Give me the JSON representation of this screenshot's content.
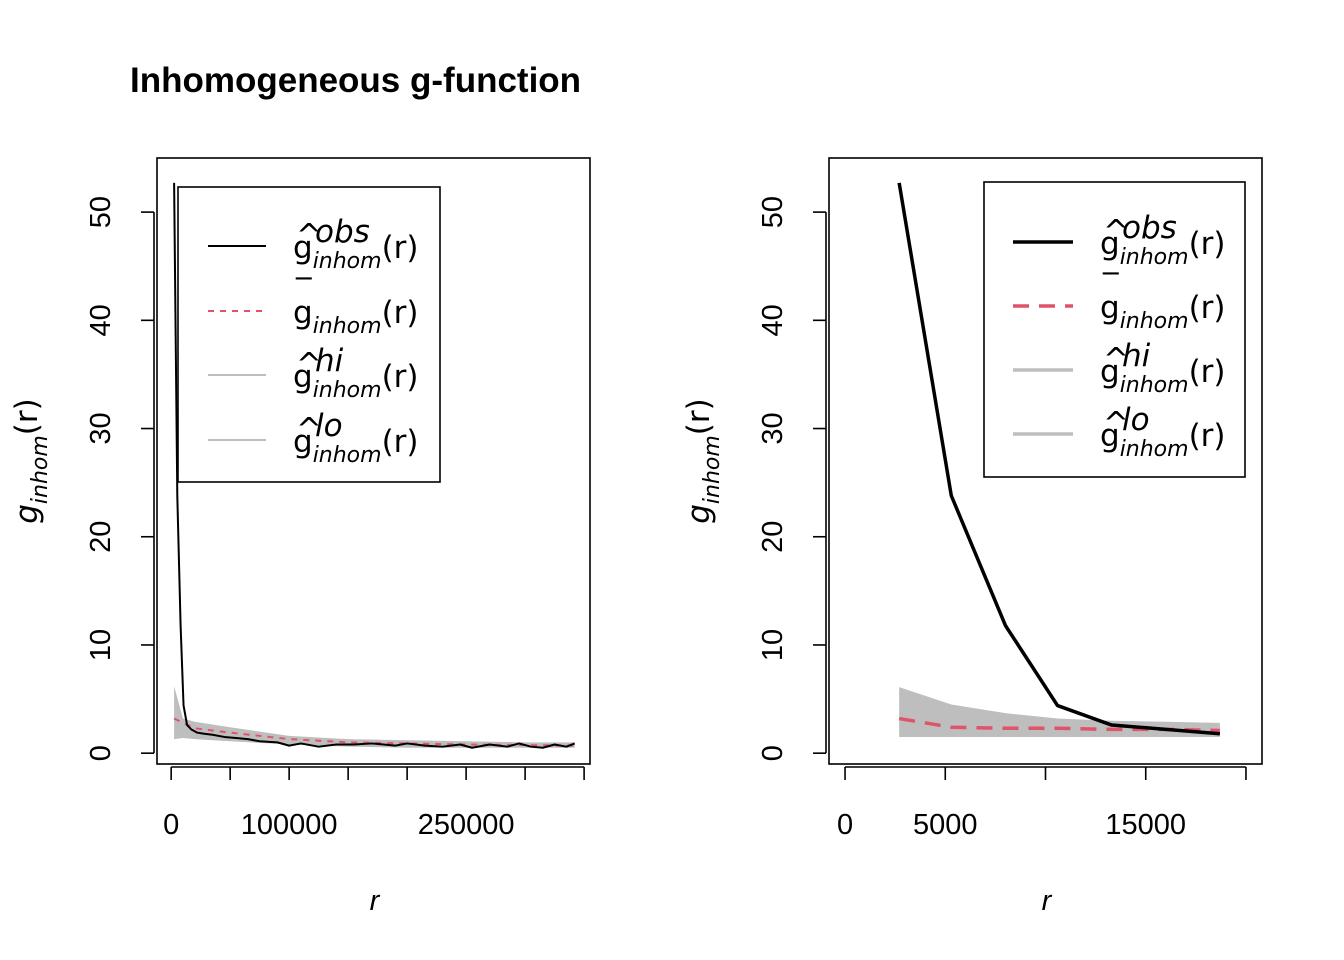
{
  "title": "Inhomogeneous g-function",
  "colors": {
    "obs": "#000000",
    "theo": "#DF536B",
    "envelope": "#BEBEBE",
    "box": "#000000"
  },
  "legend": {
    "entries": [
      {
        "key": "obs",
        "base": "g",
        "accent": "^",
        "sup": "obs",
        "sub": "inhom",
        "arg": "(r)"
      },
      {
        "key": "theo",
        "base": "g",
        "accent": "‾",
        "sup": "",
        "sub": "inhom",
        "arg": "(r)"
      },
      {
        "key": "hi",
        "base": "g",
        "accent": "^",
        "sup": "hi",
        "sub": "inhom",
        "arg": "(r)"
      },
      {
        "key": "lo",
        "base": "g",
        "accent": "^",
        "sup": "lo",
        "sub": "inhom",
        "arg": "(r)"
      }
    ]
  },
  "chart_data": [
    {
      "type": "line",
      "title": "Inhomogeneous g-function",
      "xlabel": "r",
      "ylabel_base": "g",
      "ylabel_sub": "inhom",
      "ylabel_arg": "(r)",
      "xlim": [
        -12000,
        355000
      ],
      "ylim": [
        -1,
        55
      ],
      "xticks": [
        0,
        50000,
        100000,
        150000,
        200000,
        250000,
        300000,
        350000
      ],
      "xtick_labels": [
        "0",
        "",
        "100000",
        "",
        "",
        "250000",
        "",
        ""
      ],
      "yticks": [
        0,
        10,
        20,
        30,
        40,
        50
      ],
      "ytick_labels": [
        "0",
        "10",
        "20",
        "30",
        "40",
        "50"
      ],
      "legend_position": "top-right",
      "series": [
        {
          "key": "obs",
          "x": [
            2500,
            5200,
            8000,
            10500,
            13500,
            17000,
            22000,
            28000,
            35000,
            45000,
            55000,
            65000,
            75000,
            90000,
            100000,
            110000,
            125000,
            140000,
            155000,
            170000,
            190000,
            200000,
            215000,
            230000,
            245000,
            255000,
            270000,
            285000,
            295000,
            305000,
            315000,
            325000,
            335000,
            342000
          ],
          "y": [
            52.7,
            23.8,
            11.8,
            4.4,
            2.6,
            2.2,
            1.9,
            1.8,
            1.7,
            1.5,
            1.4,
            1.3,
            1.1,
            1.0,
            0.7,
            0.9,
            0.6,
            0.8,
            0.8,
            0.9,
            0.7,
            0.9,
            0.7,
            0.6,
            0.8,
            0.5,
            0.8,
            0.6,
            0.9,
            0.6,
            0.5,
            0.8,
            0.6,
            0.9
          ]
        },
        {
          "key": "theo",
          "x": [
            2500,
            20000,
            50000,
            100000,
            150000,
            200000,
            250000,
            300000,
            342000
          ],
          "y": [
            3.2,
            2.3,
            1.9,
            1.3,
            1.0,
            0.9,
            0.8,
            0.75,
            0.7
          ]
        },
        {
          "key": "hi",
          "x": [
            2500,
            10000,
            20000,
            50000,
            100000,
            150000,
            200000,
            250000,
            300000,
            342000
          ],
          "y": [
            6.2,
            3.2,
            2.9,
            2.4,
            1.6,
            1.3,
            1.2,
            1.1,
            1.0,
            1.0
          ]
        },
        {
          "key": "lo",
          "x": [
            2500,
            10000,
            20000,
            50000,
            100000,
            150000,
            200000,
            250000,
            300000,
            342000
          ],
          "y": [
            1.3,
            1.4,
            1.3,
            1.1,
            0.8,
            0.6,
            0.5,
            0.5,
            0.5,
            0.5
          ]
        }
      ]
    },
    {
      "type": "line",
      "title": "",
      "xlabel": "r",
      "ylabel_base": "g",
      "ylabel_sub": "inhom",
      "ylabel_arg": "(r)",
      "xlim": [
        -800,
        20800
      ],
      "ylim": [
        -1,
        55
      ],
      "xticks": [
        0,
        5000,
        10000,
        15000,
        20000
      ],
      "xtick_labels": [
        "0",
        "5000",
        "",
        "15000",
        ""
      ],
      "yticks": [
        0,
        10,
        20,
        30,
        40,
        50
      ],
      "ytick_labels": [
        "0",
        "10",
        "20",
        "30",
        "40",
        "50"
      ],
      "legend_position": "top-right",
      "series": [
        {
          "key": "obs",
          "x": [
            2700,
            5300,
            8000,
            10600,
            13300,
            16000,
            18700
          ],
          "y": [
            52.7,
            23.8,
            11.8,
            4.4,
            2.6,
            2.2,
            1.8
          ]
        },
        {
          "key": "theo",
          "x": [
            2700,
            5300,
            8000,
            10600,
            13300,
            16000,
            18700
          ],
          "y": [
            3.2,
            2.4,
            2.3,
            2.3,
            2.2,
            2.2,
            2.1
          ]
        },
        {
          "key": "hi",
          "x": [
            2700,
            5300,
            8000,
            10600,
            13300,
            16000,
            18700
          ],
          "y": [
            6.1,
            4.5,
            3.7,
            3.2,
            3.0,
            2.9,
            2.8
          ]
        },
        {
          "key": "lo",
          "x": [
            2700,
            5300,
            8000,
            10600,
            13300,
            16000,
            18700
          ],
          "y": [
            1.5,
            1.5,
            1.5,
            1.5,
            1.5,
            1.5,
            1.5
          ]
        }
      ]
    }
  ]
}
